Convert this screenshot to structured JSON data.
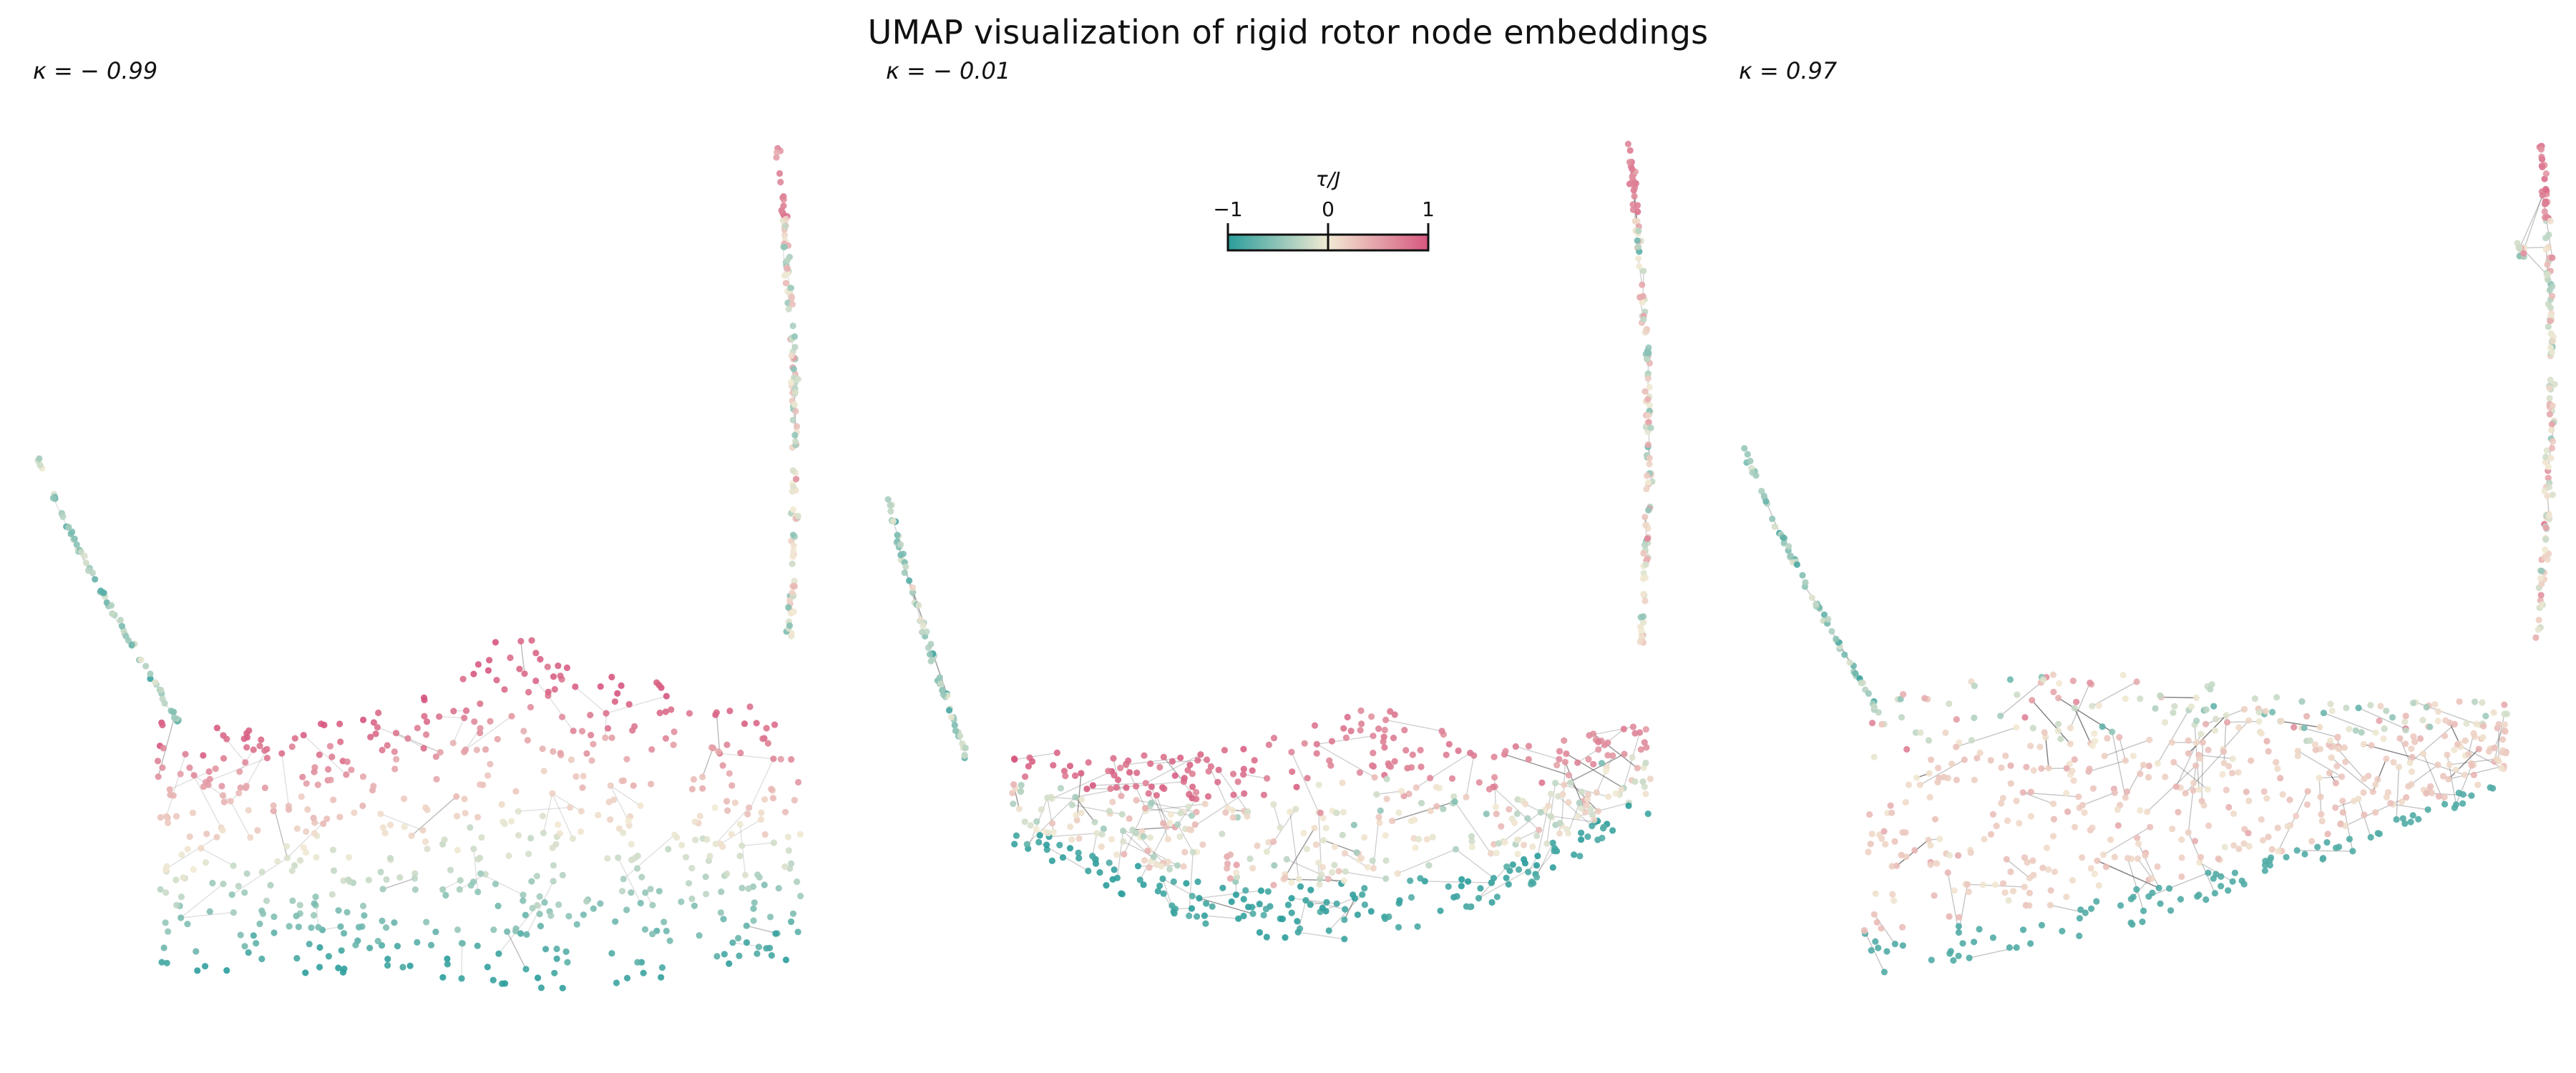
{
  "chart_data": {
    "type": "scatter",
    "title": "UMAP visualization of rigid rotor node embeddings",
    "colorbar": {
      "label": "τ/J",
      "ticks": [
        "−1",
        "0",
        "1"
      ],
      "range": [
        -1,
        1
      ],
      "colors": [
        "#2a9d9b",
        "#f2ead3",
        "#d6577e"
      ]
    },
    "panels": [
      {
        "kappa_label": "κ = − 0.99",
        "kappa": -0.99
      },
      {
        "kappa_label": "κ = − 0.01",
        "kappa": -0.01
      },
      {
        "kappa_label": "κ = 0.97",
        "kappa": 0.97
      }
    ],
    "grid": false,
    "axes_visible": false
  }
}
